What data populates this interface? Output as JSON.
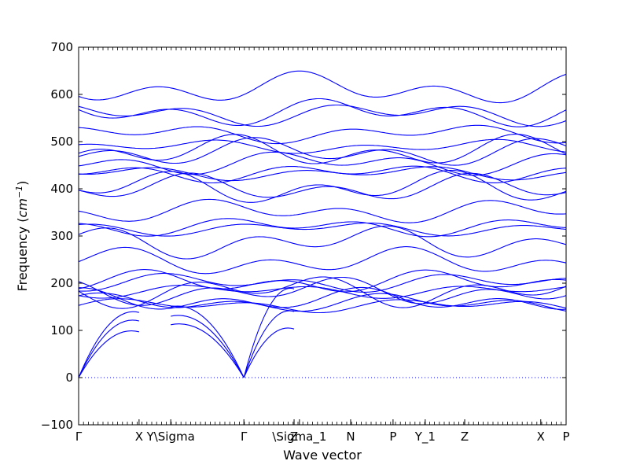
{
  "chart_data": {
    "type": "line",
    "title": "",
    "xlabel": "Wave vector",
    "ylabel": "Frequency",
    "ylabel_unit_base": "cm",
    "ylabel_unit_exp": "−1",
    "ylim": [
      -100,
      700
    ],
    "y_ticks": [
      -100,
      0,
      100,
      200,
      300,
      400,
      500,
      600,
      700
    ],
    "x_ticks": [
      {
        "label": "Γ",
        "x": 0
      },
      {
        "label": "X",
        "x": 0.124
      },
      {
        "label": "Y\\Sigma",
        "x": 0.189
      },
      {
        "label": "Γ",
        "x": 0.339
      },
      {
        "label": "Z",
        "x": 0.442
      },
      {
        "label": "\\Sigma_1",
        "x": 0.453
      },
      {
        "label": "N",
        "x": 0.558
      },
      {
        "label": "P",
        "x": 0.645
      },
      {
        "label": "Y_1",
        "x": 0.711
      },
      {
        "label": "Z",
        "x": 0.792
      },
      {
        "label": "X",
        "x": 0.948
      },
      {
        "label": "P",
        "x": 1.0
      }
    ],
    "zero_line": {
      "y": 0,
      "style": "dotted",
      "color": "#0000ff"
    },
    "line_color": "#0000ff",
    "grid": false,
    "series_count": 36,
    "acoustic_endpoints": [
      {
        "x0": 0,
        "y0": 0,
        "x1": 0.124,
        "y1": 97
      },
      {
        "x0": 0,
        "y0": 0,
        "x1": 0.124,
        "y1": 120
      },
      {
        "x0": 0,
        "y0": 0,
        "x1": 0.124,
        "y1": 138
      },
      {
        "x0": 0.339,
        "y0": 0,
        "x1": 0.189,
        "y1": 112
      },
      {
        "x0": 0.339,
        "y0": 0,
        "x1": 0.189,
        "y1": 130
      },
      {
        "x0": 0.339,
        "y0": 0,
        "x1": 0.189,
        "y1": 150
      },
      {
        "x0": 0.339,
        "y0": 0,
        "x1": 0.442,
        "y1": 103
      },
      {
        "x0": 0.339,
        "y0": 0,
        "x1": 0.442,
        "y1": 140
      },
      {
        "x0": 0.339,
        "y0": 0,
        "x1": 0.442,
        "y1": 188
      }
    ],
    "optical_branch_values_at_gamma": [
      153,
      162,
      172,
      182,
      188,
      192,
      201,
      206,
      253,
      287,
      320,
      328,
      352,
      405,
      410,
      433,
      438,
      463,
      477,
      482,
      497,
      517,
      563,
      570,
      612
    ]
  }
}
